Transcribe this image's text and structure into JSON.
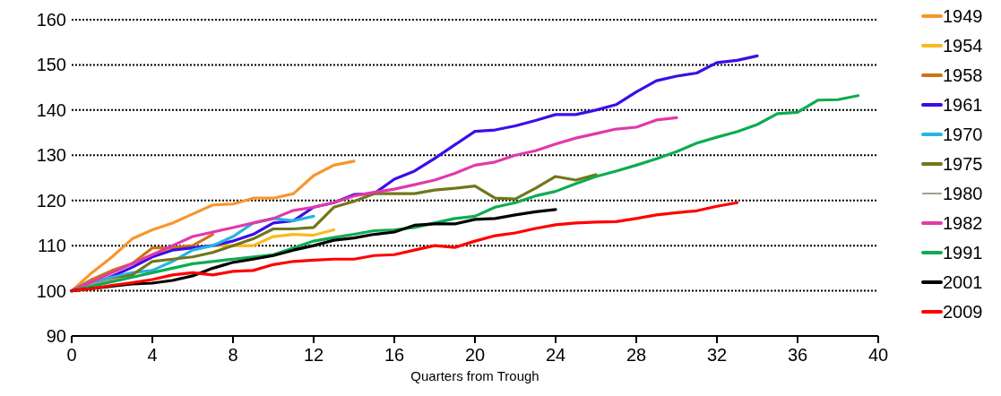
{
  "chart_data": {
    "type": "line",
    "xlabel": "Quarters  from Trough",
    "xlim": [
      0,
      40
    ],
    "xticks": [
      0,
      4,
      8,
      12,
      16,
      20,
      24,
      28,
      32,
      36,
      40
    ],
    "ylim": [
      90,
      160
    ],
    "yticks": [
      90,
      100,
      110,
      120,
      130,
      140,
      150,
      160
    ],
    "grid": "y",
    "legend": "right",
    "marker": "none",
    "line_style": "solid",
    "series": [
      {
        "name": "1949",
        "color": "#f7962e",
        "x": [
          0,
          1,
          2,
          3,
          4,
          5,
          6,
          7,
          8,
          9,
          10,
          11,
          12,
          13,
          14
        ],
        "values": [
          100,
          104,
          107.5,
          111.5,
          113.5,
          115,
          117,
          119,
          119.2,
          120.5,
          120.5,
          121.5,
          125.5,
          127.8,
          128.7
        ]
      },
      {
        "name": "1954",
        "color": "#fbb91d",
        "x": [
          0,
          1,
          2,
          3,
          4,
          5,
          6,
          7,
          8,
          9,
          10,
          11,
          12,
          13
        ],
        "values": [
          100,
          102,
          104,
          106,
          108,
          109.5,
          109.5,
          110,
          110,
          110,
          112,
          112.5,
          112.3,
          113.5
        ]
      },
      {
        "name": "1958",
        "color": "#cc7317",
        "x": [
          0,
          1,
          2,
          3,
          4,
          5,
          6,
          7
        ],
        "values": [
          100,
          102.5,
          104.5,
          106,
          109.5,
          109.5,
          110,
          112.5
        ]
      },
      {
        "name": "1961",
        "color": "#3b0ee8",
        "x": [
          0,
          1,
          2,
          3,
          4,
          5,
          6,
          7,
          8,
          9,
          10,
          11,
          12,
          13,
          14,
          15,
          16,
          17,
          18,
          19,
          20,
          21,
          22,
          23,
          24,
          25,
          26,
          27,
          28,
          29,
          30,
          31,
          32,
          33,
          34
        ],
        "values": [
          100,
          101.3,
          103.2,
          105.2,
          107.5,
          109,
          109.5,
          110,
          111,
          112.5,
          115,
          115.5,
          118.5,
          119.5,
          121.3,
          121.5,
          124.7,
          126.5,
          129.3,
          132.3,
          135.3,
          135.6,
          136.5,
          137.7,
          139,
          139,
          140,
          141.2,
          144,
          146.5,
          147.5,
          148.2,
          150.5,
          151,
          152
        ]
      },
      {
        "name": "1970",
        "color": "#25b5e3",
        "x": [
          0,
          1,
          2,
          3,
          4,
          5,
          6,
          7,
          8,
          9,
          10,
          11,
          12
        ],
        "values": [
          100,
          102,
          103,
          104,
          104.5,
          106.5,
          109,
          110,
          112,
          115,
          116,
          115.5,
          116.5
        ]
      },
      {
        "name": "1975",
        "color": "#72761a",
        "x": [
          0,
          1,
          2,
          3,
          4,
          5,
          6,
          7,
          8,
          9,
          10,
          11,
          12,
          13,
          14,
          15,
          16,
          17,
          18,
          19,
          20,
          21,
          22,
          23,
          24,
          25,
          26
        ],
        "values": [
          100,
          101,
          102.5,
          103.5,
          106.5,
          107,
          107.5,
          108.5,
          110,
          111.5,
          113.7,
          113.7,
          114,
          118.5,
          119.8,
          121.5,
          121.5,
          121.5,
          122.3,
          122.7,
          123.2,
          120.5,
          120.3,
          122.7,
          125.3,
          124.5,
          125.7
        ]
      },
      {
        "name": "1980",
        "color": "#a0a08c",
        "x": [
          0,
          1,
          2,
          3,
          4
        ],
        "values": [
          100,
          101.5,
          102.5,
          103,
          104.2
        ]
      },
      {
        "name": "1982",
        "color": "#e03aaa",
        "x": [
          0,
          1,
          2,
          3,
          4,
          5,
          6,
          7,
          8,
          9,
          10,
          11,
          12,
          13,
          14,
          15,
          16,
          17,
          18,
          19,
          20,
          21,
          22,
          23,
          24,
          25,
          26,
          27,
          28,
          29,
          30
        ],
        "values": [
          100,
          102,
          104,
          106,
          108,
          110,
          112,
          113,
          114,
          115,
          116,
          117.8,
          118.5,
          119.5,
          121,
          121.8,
          122.5,
          123.5,
          124.5,
          126,
          127.8,
          128.5,
          130,
          131,
          132.5,
          133.8,
          134.8,
          135.8,
          136.2,
          137.8,
          138.3
        ]
      },
      {
        "name": "1991",
        "color": "#0eac52",
        "x": [
          0,
          1,
          2,
          3,
          4,
          5,
          6,
          7,
          8,
          9,
          10,
          11,
          12,
          13,
          14,
          15,
          16,
          17,
          18,
          19,
          20,
          21,
          22,
          23,
          24,
          25,
          26,
          27,
          28,
          29,
          30,
          31,
          32,
          33,
          34,
          35,
          36,
          37,
          38,
          39
        ],
        "values": [
          100,
          101,
          102,
          103,
          104,
          105,
          106,
          106.5,
          107,
          107.5,
          108,
          109.5,
          111,
          111.8,
          112.5,
          113.3,
          113.5,
          114,
          115,
          116,
          116.5,
          118.5,
          119.5,
          121,
          122,
          123.7,
          125.3,
          126.5,
          127.8,
          129.2,
          130.8,
          132.7,
          134,
          135.2,
          136.8,
          139.2,
          139.5,
          142.2,
          142.3,
          143.2
        ]
      },
      {
        "name": "2001",
        "color": "#000000",
        "x": [
          0,
          1,
          2,
          3,
          4,
          5,
          6,
          7,
          8,
          9,
          10,
          11,
          12,
          13,
          14,
          15,
          16,
          17,
          18,
          19,
          20,
          21,
          22,
          23,
          24
        ],
        "values": [
          100,
          100.5,
          101,
          101.5,
          101.7,
          102.3,
          103.3,
          105,
          106.3,
          107,
          107.8,
          109,
          110,
          111.2,
          111.7,
          112.5,
          113,
          114.5,
          114.8,
          114.8,
          115.8,
          116,
          116.8,
          117.5,
          118
        ]
      },
      {
        "name": "2009",
        "color": "#ff0000",
        "x": [
          0,
          1,
          2,
          3,
          4,
          5,
          6,
          7,
          8,
          9,
          10,
          11,
          12,
          13,
          14,
          15,
          16,
          17,
          18,
          19,
          20,
          21,
          22,
          23,
          24,
          25,
          26,
          27,
          28,
          29,
          30,
          31,
          32,
          33
        ],
        "values": [
          100,
          100.5,
          101.2,
          101.8,
          102.5,
          103.5,
          104,
          103.5,
          104.3,
          104.5,
          105.8,
          106.5,
          106.8,
          107,
          107,
          107.8,
          108,
          109,
          110,
          109.6,
          111,
          112.2,
          112.8,
          113.8,
          114.6,
          115,
          115.2,
          115.3,
          116,
          116.8,
          117.3,
          117.7,
          118.7,
          119.5
        ]
      }
    ]
  }
}
